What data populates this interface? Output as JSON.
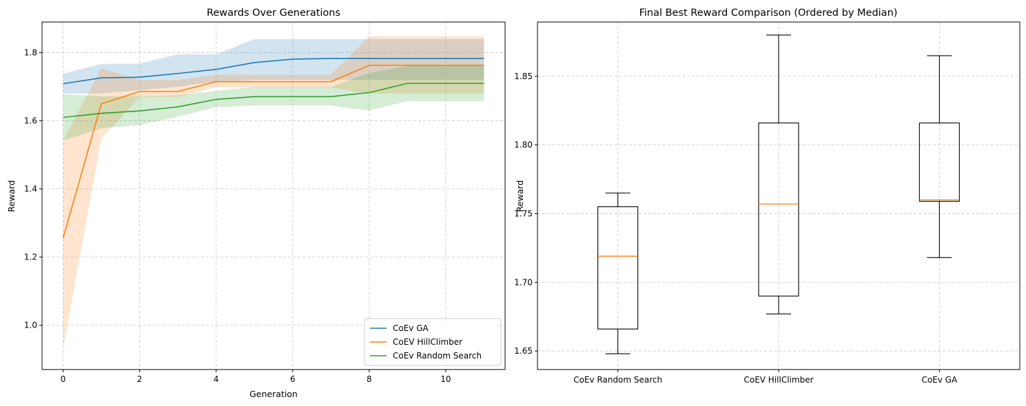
{
  "chart_data": [
    {
      "type": "line",
      "title": "Rewards Over Generations",
      "xlabel": "Generation",
      "ylabel": "Reward",
      "xlim": [
        -0.55,
        11.55
      ],
      "ylim": [
        0.87,
        1.89
      ],
      "xticks": [
        0,
        2,
        4,
        6,
        8,
        10
      ],
      "yticks": [
        1.0,
        1.2,
        1.4,
        1.6,
        1.8
      ],
      "ytick_labels": [
        "1.0",
        "1.2",
        "1.4",
        "1.6",
        "1.8"
      ],
      "grid": true,
      "legend_position": "lower-right",
      "x": [
        0,
        1,
        2,
        3,
        4,
        5,
        6,
        7,
        8,
        9,
        10,
        11
      ],
      "series": [
        {
          "name": "CoEv GA",
          "color": "#1f77b4",
          "mean": [
            1.709,
            1.726,
            1.728,
            1.739,
            1.751,
            1.771,
            1.781,
            1.783,
            1.783,
            1.783,
            1.783,
            1.783
          ],
          "lower": [
            1.68,
            1.68,
            1.69,
            1.7,
            1.715,
            1.72,
            1.72,
            1.72,
            1.72,
            1.72,
            1.72,
            1.72
          ],
          "upper": [
            1.738,
            1.767,
            1.768,
            1.795,
            1.795,
            1.84,
            1.84,
            1.84,
            1.84,
            1.84,
            1.84,
            1.84
          ]
        },
        {
          "name": "CoEV HillClimber",
          "color": "#ff7f0e",
          "mean": [
            1.256,
            1.65,
            1.686,
            1.686,
            1.715,
            1.715,
            1.715,
            1.715,
            1.763,
            1.763,
            1.763,
            1.763
          ],
          "lower": [
            0.93,
            1.548,
            1.67,
            1.67,
            1.698,
            1.698,
            1.698,
            1.698,
            1.68,
            1.68,
            1.68,
            1.68
          ],
          "upper": [
            1.54,
            1.755,
            1.72,
            1.72,
            1.735,
            1.735,
            1.735,
            1.735,
            1.848,
            1.848,
            1.848,
            1.848
          ]
        },
        {
          "name": "CoEv Random Search",
          "color": "#2ca02c",
          "mean": [
            1.61,
            1.622,
            1.629,
            1.641,
            1.663,
            1.671,
            1.671,
            1.671,
            1.683,
            1.71,
            1.71,
            1.71
          ],
          "lower": [
            1.542,
            1.578,
            1.588,
            1.612,
            1.64,
            1.645,
            1.645,
            1.645,
            1.63,
            1.658,
            1.658,
            1.658
          ],
          "upper": [
            1.678,
            1.672,
            1.672,
            1.675,
            1.688,
            1.7,
            1.7,
            1.7,
            1.74,
            1.762,
            1.762,
            1.762
          ]
        }
      ]
    },
    {
      "type": "box",
      "title": "Final Best Reward Comparison (Ordered by Median)",
      "xlabel": "",
      "ylabel": "Reward",
      "ylim": [
        1.6365,
        1.8895
      ],
      "yticks": [
        1.65,
        1.7,
        1.75,
        1.8,
        1.85
      ],
      "ytick_labels": [
        "1.65",
        "1.70",
        "1.75",
        "1.80",
        "1.85"
      ],
      "grid": true,
      "box_color": "#000000",
      "median_color": "#ff7f0e",
      "categories": [
        "CoEv Random Search",
        "CoEV HillClimber",
        "CoEv GA"
      ],
      "boxes": [
        {
          "whislo": 1.648,
          "q1": 1.666,
          "med": 1.719,
          "q3": 1.755,
          "whishi": 1.765
        },
        {
          "whislo": 1.677,
          "q1": 1.69,
          "med": 1.757,
          "q3": 1.816,
          "whishi": 1.88
        },
        {
          "whislo": 1.718,
          "q1": 1.759,
          "med": 1.76,
          "q3": 1.816,
          "whishi": 1.865
        }
      ]
    }
  ]
}
